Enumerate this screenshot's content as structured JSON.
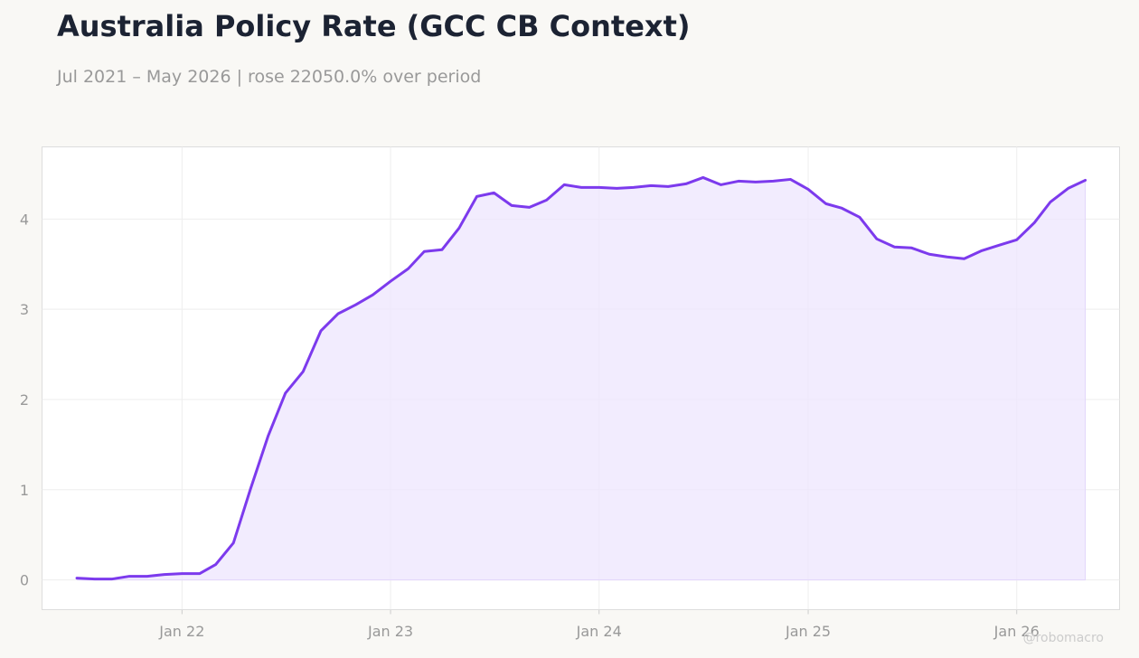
{
  "header": {
    "title": "Australia Policy Rate (GCC CB Context)",
    "subtitle": "Jul 2021 – May 2026 | rose 22050.0% over period"
  },
  "watermark": "@robomacro",
  "colors": {
    "line": "#7c3aed",
    "fill": "#ede5fd",
    "grid": "#eeeeee",
    "background": "#f9f8f5",
    "plot_background": "#ffffff"
  },
  "chart_data": {
    "type": "area",
    "title": "Australia Policy Rate (GCC CB Context)",
    "xlabel": "",
    "ylabel": "",
    "grid": true,
    "legend": "none",
    "x_range": [
      "2021-05-01",
      "2026-06-30"
    ],
    "ylim": [
      -0.33,
      4.8
    ],
    "x_ticks": [
      {
        "date": "2022-01-01",
        "label": "Jan 22"
      },
      {
        "date": "2023-01-01",
        "label": "Jan 23"
      },
      {
        "date": "2024-01-01",
        "label": "Jan 24"
      },
      {
        "date": "2025-01-01",
        "label": "Jan 25"
      },
      {
        "date": "2026-01-01",
        "label": "Jan 26"
      }
    ],
    "y_ticks": [
      0,
      1,
      2,
      3,
      4
    ],
    "series": [
      {
        "points": [
          [
            "2021-07-01",
            0.02
          ],
          [
            "2021-08-01",
            0.01
          ],
          [
            "2021-09-01",
            0.01
          ],
          [
            "2021-10-01",
            0.04
          ],
          [
            "2021-11-01",
            0.04
          ],
          [
            "2021-12-01",
            0.06
          ],
          [
            "2022-01-01",
            0.07
          ],
          [
            "2022-02-01",
            0.07
          ],
          [
            "2022-03-01",
            0.17
          ],
          [
            "2022-04-01",
            0.41
          ],
          [
            "2022-05-01",
            1.01
          ],
          [
            "2022-06-01",
            1.6
          ],
          [
            "2022-07-01",
            2.07
          ],
          [
            "2022-08-01",
            2.31
          ],
          [
            "2022-09-01",
            2.76
          ],
          [
            "2022-10-01",
            2.95
          ],
          [
            "2022-11-01",
            3.05
          ],
          [
            "2022-12-01",
            3.16
          ],
          [
            "2023-01-01",
            3.31
          ],
          [
            "2023-02-01",
            3.45
          ],
          [
            "2023-03-01",
            3.64
          ],
          [
            "2023-04-01",
            3.66
          ],
          [
            "2023-05-01",
            3.9
          ],
          [
            "2023-06-01",
            4.25
          ],
          [
            "2023-07-01",
            4.29
          ],
          [
            "2023-08-01",
            4.15
          ],
          [
            "2023-09-01",
            4.13
          ],
          [
            "2023-10-01",
            4.21
          ],
          [
            "2023-11-01",
            4.38
          ],
          [
            "2023-12-01",
            4.35
          ],
          [
            "2024-01-01",
            4.35
          ],
          [
            "2024-02-01",
            4.34
          ],
          [
            "2024-03-01",
            4.35
          ],
          [
            "2024-04-01",
            4.37
          ],
          [
            "2024-05-01",
            4.36
          ],
          [
            "2024-06-01",
            4.39
          ],
          [
            "2024-07-01",
            4.46
          ],
          [
            "2024-08-01",
            4.38
          ],
          [
            "2024-09-01",
            4.42
          ],
          [
            "2024-10-01",
            4.41
          ],
          [
            "2024-11-01",
            4.42
          ],
          [
            "2024-12-01",
            4.44
          ],
          [
            "2025-01-01",
            4.33
          ],
          [
            "2025-02-01",
            4.17
          ],
          [
            "2025-03-01",
            4.12
          ],
          [
            "2025-04-01",
            4.02
          ],
          [
            "2025-05-01",
            3.78
          ],
          [
            "2025-06-01",
            3.69
          ],
          [
            "2025-07-01",
            3.68
          ],
          [
            "2025-08-01",
            3.61
          ],
          [
            "2025-09-01",
            3.58
          ],
          [
            "2025-10-01",
            3.56
          ],
          [
            "2025-11-01",
            3.65
          ],
          [
            "2025-12-01",
            3.71
          ],
          [
            "2026-01-01",
            3.77
          ],
          [
            "2026-02-01",
            3.96
          ],
          [
            "2026-03-01",
            4.19
          ],
          [
            "2026-04-01",
            4.34
          ],
          [
            "2026-05-01",
            4.43
          ]
        ]
      }
    ]
  }
}
